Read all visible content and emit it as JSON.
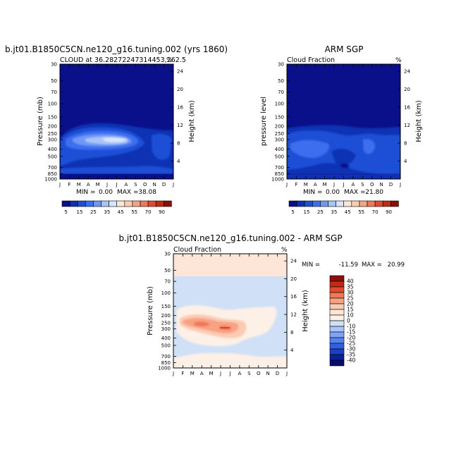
{
  "chart_data": [
    {
      "type": "heatmap",
      "title": "b.jt01.B1850C5CN.ne120_g16.tuning.002 (yrs 1860)",
      "subtitle_left": "CLOUD at 36.28272247314453,262.5",
      "units": "%",
      "ylabel_left": "Pressure (mb)",
      "ylabel_right": "Height (km)",
      "x_ticks": [
        "J",
        "F",
        "M",
        "A",
        "M",
        "J",
        "J",
        "A",
        "S",
        "O",
        "N",
        "D",
        "J"
      ],
      "pressure_ticks": [
        "30",
        "50",
        "70",
        "100",
        "150",
        "200",
        "250",
        "300",
        "400",
        "500",
        "700",
        "850",
        "1000"
      ],
      "height_ticks": [
        "24",
        "20",
        "16",
        "12",
        "8",
        "4"
      ],
      "stats": {
        "min_label": "MIN =",
        "min": "0.00",
        "max_label": "MAX =",
        "max": "38.08"
      },
      "legend_levels": [
        "5",
        "15",
        "25",
        "35",
        "45",
        "55",
        "70",
        "90"
      ]
    },
    {
      "type": "heatmap",
      "title": "ARM SGP",
      "subtitle_left": "Cloud Fraction",
      "units": "%",
      "ylabel_left": "pressure level",
      "ylabel_right": "Height (km)",
      "x_ticks": [
        "J",
        "F",
        "M",
        "A",
        "M",
        "J",
        "J",
        "A",
        "S",
        "O",
        "N",
        "D",
        "J"
      ],
      "pressure_ticks": [
        "30",
        "50",
        "70",
        "100",
        "150",
        "200",
        "250",
        "300",
        "400",
        "500",
        "700",
        "850",
        "1000"
      ],
      "height_ticks": [
        "24",
        "20",
        "16",
        "12",
        "8",
        "4"
      ],
      "stats": {
        "min_label": "MIN =",
        "min": "0.00",
        "max_label": "MAX =",
        "max": "21.80"
      },
      "legend_levels": [
        "5",
        "15",
        "25",
        "35",
        "45",
        "55",
        "70",
        "90"
      ]
    },
    {
      "type": "heatmap",
      "title": "b.jt01.B1850C5CN.ne120_g16.tuning.002 - ARM SGP",
      "subtitle_left": "Cloud Fraction",
      "units": "%",
      "ylabel_left": "Pressure (mb)",
      "ylabel_right": "Height (km)",
      "x_ticks": [
        "J",
        "F",
        "M",
        "A",
        "M",
        "J",
        "J",
        "A",
        "S",
        "O",
        "N",
        "D",
        "J"
      ],
      "pressure_ticks": [
        "30",
        "50",
        "70",
        "100",
        "150",
        "200",
        "250",
        "300",
        "400",
        "500",
        "700",
        "850",
        "1000"
      ],
      "height_ticks": [
        "24",
        "20",
        "16",
        "12",
        "8",
        "4"
      ],
      "stats": {
        "min_label": "MIN =",
        "min": "-11.59",
        "max_label": "MAX =",
        "max": "20.99"
      },
      "legend_levels": [
        "40",
        "35",
        "30",
        "25",
        "20",
        "15",
        "10",
        "0",
        "-10",
        "-15",
        "-20",
        "-25",
        "-30",
        "-35",
        "-40"
      ]
    }
  ],
  "palettes": {
    "abs": [
      "#0a0f8a",
      "#1030b4",
      "#1e4fd6",
      "#3c6ef0",
      "#6f98f6",
      "#a8c4f9",
      "#d8e6fc",
      "#fde6d8",
      "#fbcbb2",
      "#f8a284",
      "#f27757",
      "#e14a30",
      "#c22a16",
      "#8e0f07"
    ],
    "diff": [
      "#8e0f07",
      "#c22a16",
      "#e14a30",
      "#f27757",
      "#f8a284",
      "#fbcbb2",
      "#fde6d8",
      "#fdf0e6",
      "#cfe0f7",
      "#a8c4f9",
      "#7fa4f5",
      "#5682ee",
      "#3260de",
      "#1a3fc4",
      "#0a1f9a",
      "#060c70"
    ]
  }
}
